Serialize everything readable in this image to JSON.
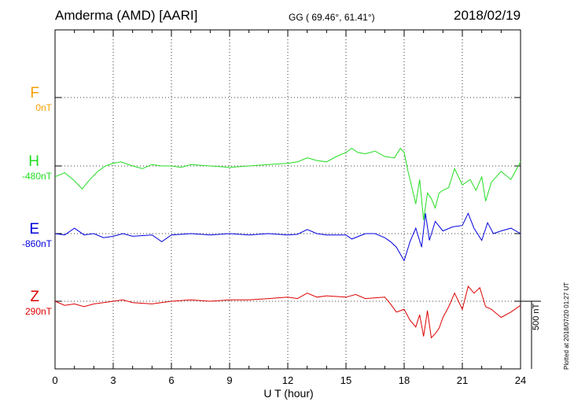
{
  "header": {
    "station": "Amderma (AMD)  [AARI]",
    "coords": "GG ( 69.46°,  61.41°)",
    "date": "2018/02/19"
  },
  "colors": {
    "F": "#f5a000",
    "H": "#22dd22",
    "E": "#0000dd",
    "Z": "#dd0000"
  },
  "chart_data": {
    "type": "line",
    "xlabel": "U T (hour)",
    "xlim": [
      0,
      24
    ],
    "x_ticks": [
      "0",
      "3",
      "6",
      "9",
      "12",
      "15",
      "18",
      "21",
      "24"
    ],
    "scale_bar": "500 nT",
    "plotted_note": "Plotted at 2018/07/20 01:27 UT",
    "grid": true,
    "channels": [
      {
        "name": "F",
        "offset_label": "0nT",
        "color": "#f5a000",
        "points": []
      },
      {
        "name": "H",
        "offset_label": "-480nT",
        "color": "#22dd22",
        "points": [
          [
            0,
            -80
          ],
          [
            0.5,
            -50
          ],
          [
            1.0,
            -110
          ],
          [
            1.4,
            -170
          ],
          [
            1.8,
            -100
          ],
          [
            2.2,
            -40
          ],
          [
            2.6,
            0
          ],
          [
            3.0,
            20
          ],
          [
            3.4,
            30
          ],
          [
            4.0,
            0
          ],
          [
            4.5,
            -20
          ],
          [
            5.0,
            10
          ],
          [
            5.5,
            0
          ],
          [
            6.0,
            0
          ],
          [
            6.5,
            -10
          ],
          [
            7.0,
            10
          ],
          [
            8.0,
            0
          ],
          [
            9.0,
            -10
          ],
          [
            10.0,
            0
          ],
          [
            11.0,
            10
          ],
          [
            12.0,
            20
          ],
          [
            12.5,
            30
          ],
          [
            13.0,
            60
          ],
          [
            13.5,
            40
          ],
          [
            14.0,
            30
          ],
          [
            14.5,
            70
          ],
          [
            15.0,
            100
          ],
          [
            15.3,
            130
          ],
          [
            15.6,
            100
          ],
          [
            16.0,
            90
          ],
          [
            16.5,
            110
          ],
          [
            17.0,
            70
          ],
          [
            17.5,
            60
          ],
          [
            17.8,
            130
          ],
          [
            18.0,
            100
          ],
          [
            18.2,
            -40
          ],
          [
            18.4,
            -160
          ],
          [
            18.6,
            -280
          ],
          [
            18.8,
            -100
          ],
          [
            19.0,
            -400
          ],
          [
            19.2,
            -200
          ],
          [
            19.4,
            -240
          ],
          [
            19.6,
            -310
          ],
          [
            19.8,
            -200
          ],
          [
            20.0,
            -180
          ],
          [
            20.3,
            -160
          ],
          [
            20.6,
            -20
          ],
          [
            21.0,
            -140
          ],
          [
            21.4,
            -100
          ],
          [
            21.7,
            -180
          ],
          [
            22.0,
            -80
          ],
          [
            22.2,
            -260
          ],
          [
            22.5,
            -120
          ],
          [
            23.0,
            -40
          ],
          [
            23.5,
            -100
          ],
          [
            24.0,
            30
          ]
        ]
      },
      {
        "name": "E",
        "offset_label": "-860nT",
        "color": "#0000dd",
        "points": [
          [
            0,
            0
          ],
          [
            0.5,
            -10
          ],
          [
            1.0,
            40
          ],
          [
            1.5,
            -10
          ],
          [
            2.0,
            0
          ],
          [
            2.5,
            -30
          ],
          [
            3.0,
            -20
          ],
          [
            3.5,
            0
          ],
          [
            4.0,
            -20
          ],
          [
            5.0,
            -10
          ],
          [
            5.5,
            -60
          ],
          [
            6.0,
            -10
          ],
          [
            7.0,
            0
          ],
          [
            8.0,
            -10
          ],
          [
            9.0,
            0
          ],
          [
            10.0,
            -10
          ],
          [
            11.0,
            0
          ],
          [
            12.0,
            -10
          ],
          [
            12.5,
            -5
          ],
          [
            13.0,
            30
          ],
          [
            13.5,
            0
          ],
          [
            14.0,
            -10
          ],
          [
            15.0,
            -10
          ],
          [
            15.3,
            -40
          ],
          [
            16.0,
            0
          ],
          [
            16.5,
            0
          ],
          [
            17.0,
            -30
          ],
          [
            17.3,
            -60
          ],
          [
            17.6,
            -100
          ],
          [
            18.0,
            -200
          ],
          [
            18.3,
            -60
          ],
          [
            18.6,
            40
          ],
          [
            18.9,
            -100
          ],
          [
            19.1,
            150
          ],
          [
            19.3,
            -50
          ],
          [
            19.6,
            90
          ],
          [
            20.0,
            20
          ],
          [
            20.5,
            50
          ],
          [
            21.0,
            60
          ],
          [
            21.3,
            150
          ],
          [
            21.6,
            40
          ],
          [
            22.0,
            -50
          ],
          [
            22.3,
            80
          ],
          [
            22.6,
            0
          ],
          [
            23.0,
            20
          ],
          [
            23.5,
            40
          ],
          [
            24.0,
            0
          ]
        ]
      },
      {
        "name": "Z",
        "offset_label": "290nT",
        "color": "#dd0000",
        "points": [
          [
            0,
            0
          ],
          [
            0.5,
            -30
          ],
          [
            1.0,
            -20
          ],
          [
            1.5,
            -40
          ],
          [
            2.0,
            -20
          ],
          [
            2.5,
            -10
          ],
          [
            3.0,
            0
          ],
          [
            3.5,
            10
          ],
          [
            4.0,
            -10
          ],
          [
            5.0,
            -20
          ],
          [
            6.0,
            0
          ],
          [
            7.0,
            10
          ],
          [
            8.0,
            0
          ],
          [
            9.0,
            10
          ],
          [
            10.0,
            10
          ],
          [
            11.0,
            20
          ],
          [
            12.0,
            30
          ],
          [
            12.5,
            20
          ],
          [
            13.0,
            60
          ],
          [
            13.5,
            30
          ],
          [
            14.0,
            40
          ],
          [
            15.0,
            30
          ],
          [
            15.5,
            50
          ],
          [
            16.0,
            20
          ],
          [
            17.0,
            30
          ],
          [
            17.3,
            -20
          ],
          [
            17.6,
            -80
          ],
          [
            18.0,
            -60
          ],
          [
            18.3,
            -140
          ],
          [
            18.6,
            -190
          ],
          [
            18.8,
            -100
          ],
          [
            19.0,
            -260
          ],
          [
            19.2,
            -70
          ],
          [
            19.4,
            -270
          ],
          [
            19.6,
            -240
          ],
          [
            19.8,
            -200
          ],
          [
            20.0,
            -120
          ],
          [
            20.3,
            -40
          ],
          [
            20.6,
            60
          ],
          [
            21.0,
            -60
          ],
          [
            21.3,
            110
          ],
          [
            21.6,
            60
          ],
          [
            21.9,
            100
          ],
          [
            22.2,
            -40
          ],
          [
            22.5,
            -60
          ],
          [
            23.0,
            -120
          ],
          [
            23.5,
            -80
          ],
          [
            24.0,
            -30
          ]
        ]
      }
    ]
  }
}
